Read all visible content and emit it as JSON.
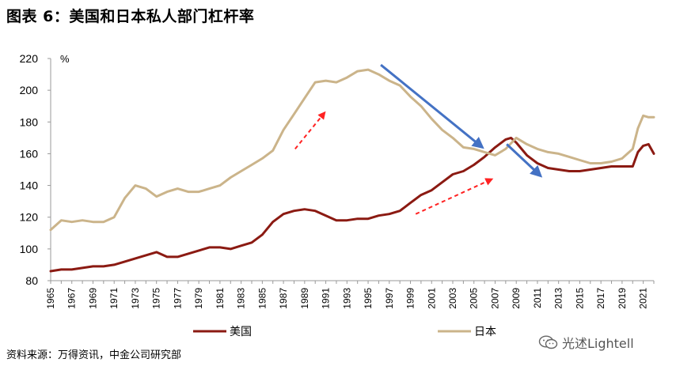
{
  "title": "图表 6：美国和日本私人部门杠杆率",
  "source": "资料来源：万得资讯，中金公司研究部",
  "watermark": "光述Lightell",
  "watermark_icon": "wechat-icon",
  "colors": {
    "us": "#8B1A12",
    "japan": "#CBB48A",
    "arrow_solid": "#4472C4",
    "arrow_dashed": "#FF2222"
  },
  "chart_data": {
    "type": "line",
    "ylabel": "%",
    "ylim": [
      80,
      220
    ],
    "yticks": [
      80,
      100,
      120,
      140,
      160,
      180,
      200,
      220
    ],
    "xlim": [
      1965,
      2022
    ],
    "xticks": [
      "1965",
      "1967",
      "1969",
      "1971",
      "1973",
      "1975",
      "1977",
      "1979",
      "1981",
      "1983",
      "1985",
      "1987",
      "1989",
      "1991",
      "1993",
      "1995",
      "1997",
      "1999",
      "2001",
      "2003",
      "2005",
      "2007",
      "2009",
      "2011",
      "2013",
      "2015",
      "2017",
      "2019",
      "2021"
    ],
    "grid": false,
    "legend": "bottom",
    "series": [
      {
        "name": "美国",
        "color": "#8B1A12",
        "x": [
          1965,
          1966,
          1967,
          1968,
          1969,
          1970,
          1971,
          1972,
          1973,
          1974,
          1975,
          1976,
          1977,
          1978,
          1979,
          1980,
          1981,
          1982,
          1983,
          1984,
          1985,
          1986,
          1987,
          1988,
          1989,
          1990,
          1991,
          1992,
          1993,
          1994,
          1995,
          1996,
          1997,
          1998,
          1999,
          2000,
          2001,
          2002,
          2003,
          2004,
          2005,
          2006,
          2007,
          2008,
          2008.5,
          2009,
          2010,
          2011,
          2012,
          2013,
          2014,
          2015,
          2016,
          2017,
          2018,
          2019,
          2020,
          2020.5,
          2021,
          2021.5,
          2022
        ],
        "y": [
          86,
          87,
          87,
          88,
          89,
          89,
          90,
          92,
          94,
          96,
          98,
          95,
          95,
          97,
          99,
          101,
          101,
          100,
          102,
          104,
          109,
          117,
          122,
          124,
          125,
          124,
          121,
          118,
          118,
          119,
          119,
          121,
          122,
          124,
          129,
          134,
          137,
          142,
          147,
          149,
          153,
          158,
          164,
          169,
          170,
          167,
          159,
          154,
          151,
          150,
          149,
          149,
          150,
          151,
          152,
          152,
          152,
          161,
          165,
          166,
          160
        ]
      },
      {
        "name": "日本",
        "color": "#CBB48A",
        "x": [
          1965,
          1966,
          1967,
          1968,
          1969,
          1970,
          1971,
          1972,
          1973,
          1974,
          1975,
          1976,
          1977,
          1978,
          1979,
          1980,
          1981,
          1982,
          1983,
          1984,
          1985,
          1986,
          1987,
          1988,
          1989,
          1990,
          1991,
          1992,
          1993,
          1994,
          1995,
          1996,
          1997,
          1998,
          1999,
          2000,
          2001,
          2002,
          2003,
          2004,
          2005,
          2006,
          2007,
          2008,
          2009,
          2010,
          2011,
          2012,
          2013,
          2014,
          2015,
          2016,
          2017,
          2018,
          2019,
          2020,
          2020.5,
          2021,
          2021.5,
          2022
        ],
        "y": [
          112,
          118,
          117,
          118,
          117,
          117,
          120,
          132,
          140,
          138,
          133,
          136,
          138,
          136,
          136,
          138,
          140,
          145,
          149,
          153,
          157,
          162,
          175,
          185,
          195,
          205,
          206,
          205,
          208,
          212,
          213,
          210,
          206,
          203,
          196,
          190,
          182,
          175,
          170,
          164,
          163,
          161,
          159,
          163,
          170,
          166,
          163,
          161,
          160,
          158,
          156,
          154,
          154,
          155,
          157,
          163,
          176,
          184,
          183,
          183
        ]
      }
    ],
    "arrows": [
      {
        "style": "solid",
        "color": "#4472C4",
        "from": [
          1996.2,
          216
        ],
        "to": [
          2005.8,
          164
        ]
      },
      {
        "style": "solid",
        "color": "#4472C4",
        "from": [
          2008.1,
          166
        ],
        "to": [
          2011.3,
          146
        ]
      },
      {
        "style": "dashed",
        "color": "#FF2222",
        "from": [
          1988.1,
          163
        ],
        "to": [
          1990.9,
          186
        ]
      },
      {
        "style": "dashed",
        "color": "#FF2222",
        "from": [
          1999.5,
          122
        ],
        "to": [
          2006.7,
          144
        ]
      }
    ]
  }
}
